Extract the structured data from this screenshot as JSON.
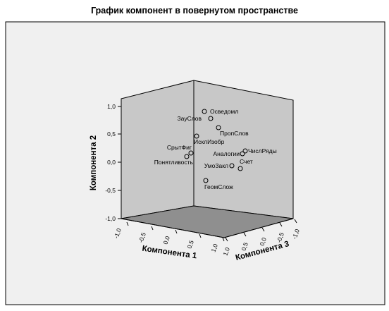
{
  "chart_data": {
    "type": "scatter",
    "title": "График компонент в повернутом пространстве",
    "axes": [
      {
        "key": "x",
        "label": "Компонента 1",
        "ticks": [
          "-1,0",
          "-0,5",
          "0,0",
          "0,5",
          "1,0"
        ],
        "range": [
          -1,
          1
        ]
      },
      {
        "key": "y",
        "label": "Компонента 2",
        "ticks": [
          "1,0",
          "0,5",
          "0,0",
          "-0,5",
          "-1,0"
        ],
        "range": [
          -1,
          1
        ]
      },
      {
        "key": "z",
        "label": "Компонента 3",
        "ticks": [
          "1,0",
          "0,5",
          "0,0",
          "-0,5",
          "-1,0"
        ],
        "range": [
          -1,
          1
        ]
      }
    ],
    "points": [
      {
        "label": "Осведомл"
      },
      {
        "label": "ЗауСлов"
      },
      {
        "label": "ПропСлов"
      },
      {
        "label": "ИсклИзобр"
      },
      {
        "label": "СрытФиг"
      },
      {
        "label": "Понятливость"
      },
      {
        "label": "ЧислРяды"
      },
      {
        "label": "Аналогии"
      },
      {
        "label": "Счет"
      },
      {
        "label": "УмоЗакл"
      },
      {
        "label": "ГеомСлож"
      }
    ],
    "colors": {
      "box_face": "#c8c8c8",
      "floor": "#8f8f8f",
      "frame_bg": "#f0f0f0"
    }
  }
}
